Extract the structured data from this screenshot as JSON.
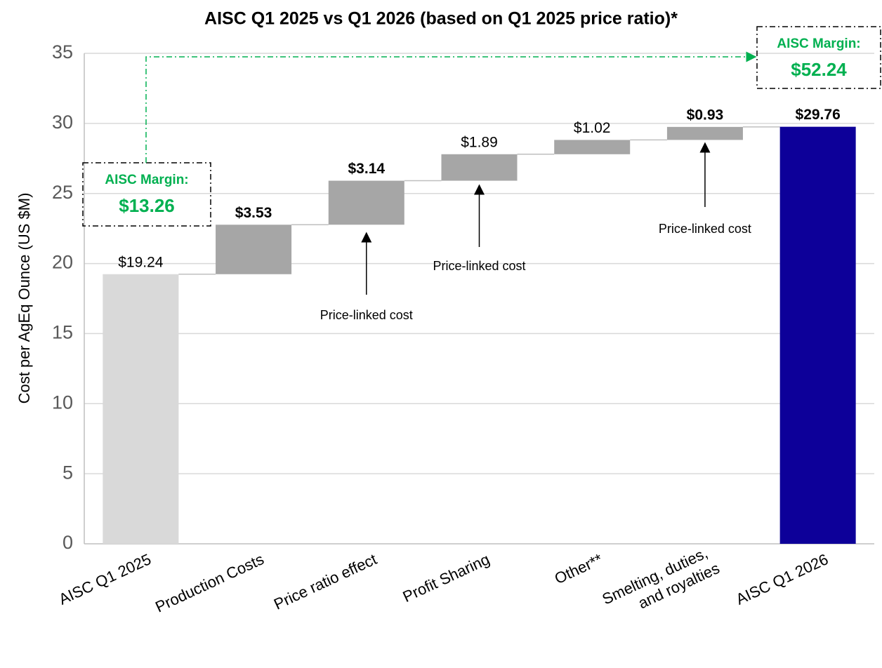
{
  "chart_data": {
    "type": "waterfall",
    "title": "AISC Q1 2025 vs Q1 2026 (based on Q1 2025 price ratio)*",
    "y_label": "Cost per AgEq Ounce (US $M)",
    "categories": [
      "AISC Q1 2025",
      "Production Costs",
      "Price ratio effect",
      "Profit Sharing",
      "Other**",
      "Smelting, duties, and royalties",
      "AISC Q1 2026"
    ],
    "measures": [
      "absolute",
      "relative",
      "relative",
      "relative",
      "relative",
      "relative",
      "total"
    ],
    "values": [
      19.24,
      3.53,
      3.14,
      1.89,
      1.02,
      0.93,
      29.76
    ],
    "value_labels": [
      "$19.24",
      "$3.53",
      "$3.14",
      "$1.89",
      "$1.02",
      "$0.93",
      "$29.76"
    ],
    "value_label_bold": [
      false,
      true,
      true,
      false,
      false,
      true,
      true
    ],
    "colors": [
      "#d9d9d9",
      "#a6a6a6",
      "#a6a6a6",
      "#a6a6a6",
      "#a6a6a6",
      "#a6a6a6",
      "#0d0099"
    ],
    "ylim": [
      0,
      35
    ],
    "yticks": [
      0,
      5,
      10,
      15,
      20,
      25,
      30,
      35
    ],
    "grid": true,
    "annotations": {
      "price_linked": [
        "Price-linked cost",
        "Price-linked cost",
        "Price-linked cost"
      ],
      "margins": [
        {
          "title": "AISC Margin:",
          "value": 13.26,
          "value_label": "$13.26"
        },
        {
          "title": "AISC Margin:",
          "value": 52.24,
          "value_label": "$52.24"
        }
      ]
    }
  }
}
